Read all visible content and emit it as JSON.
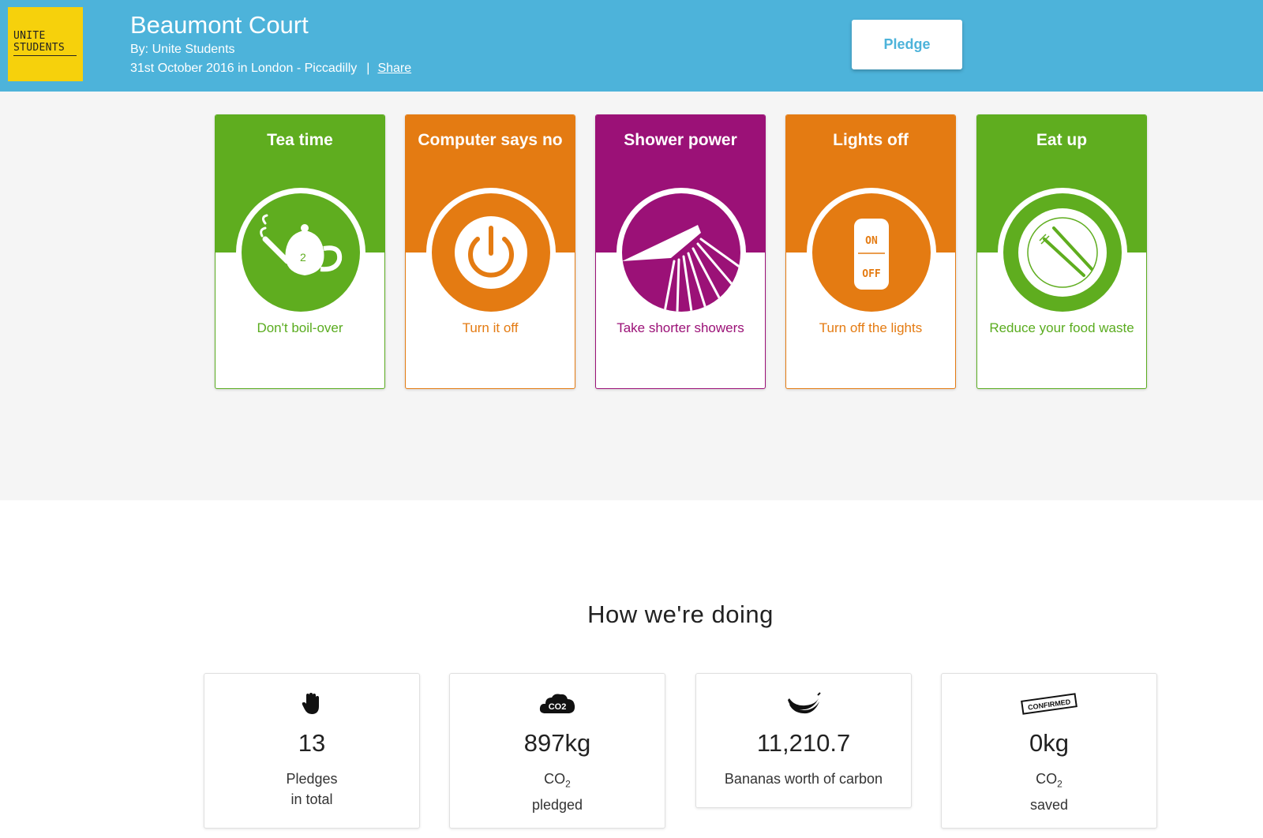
{
  "header": {
    "logo_line1": "UNITE",
    "logo_line2": "STUDENTS",
    "title": "Beaumont Court",
    "byline": "By: Unite Students",
    "dateline": "31st October 2016 in London - Piccadilly",
    "separator": "|",
    "share_label": "Share",
    "pledge_label": "Pledge",
    "bg_color": "#4db3da"
  },
  "cards": [
    {
      "title": "Tea time",
      "subtitle": "Don't boil-over",
      "color": "green",
      "icon": "teapot-icon"
    },
    {
      "title": "Computer says no",
      "subtitle": "Turn it off",
      "color": "orange",
      "icon": "power-icon"
    },
    {
      "title": "Shower power",
      "subtitle": "Take shorter showers",
      "color": "purple",
      "icon": "shower-icon"
    },
    {
      "title": "Lights off",
      "subtitle": "Turn off the lights",
      "color": "orange",
      "icon": "light-switch-icon",
      "switch_on": "ON",
      "switch_off": "OFF"
    },
    {
      "title": "Eat up",
      "subtitle": "Reduce your food waste",
      "color": "green",
      "icon": "plate-icon"
    }
  ],
  "stats_section": {
    "title": "How we're doing",
    "items": [
      {
        "icon": "hand-icon",
        "value": "13",
        "label_line1": "Pledges",
        "label_line2": "in total"
      },
      {
        "icon": "co2-cloud-icon",
        "icon_text": "CO2",
        "value": "897kg",
        "label_line1": "CO",
        "label_sub": "2",
        "label_line2": "pledged"
      },
      {
        "icon": "banana-icon",
        "value": "11,210.7",
        "label_line1": "Bananas worth of carbon"
      },
      {
        "icon": "confirmed-stamp-icon",
        "icon_text": "CONFIRMED",
        "value": "0kg",
        "label_line1": "CO",
        "label_sub": "2",
        "label_line2": "saved"
      }
    ]
  },
  "colors": {
    "green": "#5fad1f",
    "orange": "#e47b12",
    "purple": "#9b1177",
    "logo_yellow": "#f6d10c",
    "band_grey": "#f5f5f5"
  }
}
